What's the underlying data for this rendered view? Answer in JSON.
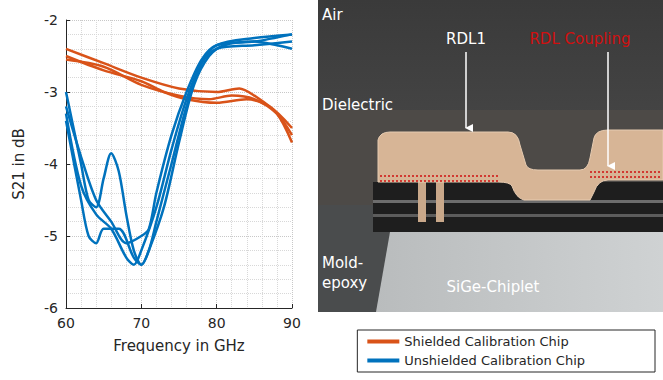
{
  "chart_data": {
    "type": "line",
    "x_label": "Frequency in GHz",
    "y_label": "S21 in dB",
    "xlim": [
      60,
      90
    ],
    "xticks": [
      60,
      70,
      80,
      90
    ],
    "ylim": [
      -6,
      -2
    ],
    "yticks": [
      -6,
      -5,
      -4,
      -3,
      -2
    ],
    "grid": true,
    "legend": "bottom-right",
    "series": [
      {
        "name": "Shielded Calibration Chip",
        "color": "#d95319",
        "x": [
          60,
          65,
          70,
          75,
          80,
          83,
          85,
          88,
          90
        ],
        "values": [
          -2.4,
          -2.6,
          -2.8,
          -2.95,
          -3.0,
          -2.95,
          -3.05,
          -3.3,
          -3.7
        ]
      },
      {
        "name": "Shielded Calibration Chip",
        "color": "#d95319",
        "x": [
          60,
          65,
          70,
          73,
          76,
          80,
          84,
          87,
          90
        ],
        "values": [
          -2.5,
          -2.7,
          -2.85,
          -3.0,
          -3.1,
          -3.15,
          -3.1,
          -3.2,
          -3.5
        ]
      },
      {
        "name": "Shielded Calibration Chip",
        "color": "#d95319",
        "x": [
          60,
          65,
          70,
          75,
          79,
          82,
          85,
          88,
          90
        ],
        "values": [
          -2.55,
          -2.65,
          -2.9,
          -3.05,
          -3.1,
          -3.05,
          -3.1,
          -3.3,
          -3.6
        ]
      },
      {
        "name": "Unshielded Calibration Chip",
        "color": "#0072bd",
        "x": [
          60,
          62,
          63,
          64,
          65,
          66,
          67,
          68,
          69,
          70,
          71,
          72,
          74,
          76,
          78,
          80,
          85,
          90
        ],
        "values": [
          -3.0,
          -4.0,
          -4.5,
          -4.6,
          -4.2,
          -3.85,
          -4.1,
          -4.7,
          -5.2,
          -5.4,
          -5.2,
          -4.8,
          -4.0,
          -3.2,
          -2.6,
          -2.35,
          -2.25,
          -2.2
        ]
      },
      {
        "name": "Unshielded Calibration Chip",
        "color": "#0072bd",
        "x": [
          60,
          62,
          63,
          64,
          65,
          67,
          69,
          70,
          71,
          73,
          75,
          77,
          79,
          81,
          85,
          88,
          90
        ],
        "values": [
          -3.4,
          -4.5,
          -5.0,
          -5.1,
          -4.9,
          -4.9,
          -5.3,
          -5.4,
          -5.2,
          -4.6,
          -3.7,
          -2.9,
          -2.5,
          -2.35,
          -2.3,
          -2.35,
          -2.4
        ]
      },
      {
        "name": "Unshielded Calibration Chip",
        "color": "#0072bd",
        "x": [
          60,
          62,
          64,
          66,
          68,
          70,
          71,
          72,
          74,
          76,
          78,
          80,
          85,
          90
        ],
        "values": [
          -3.2,
          -3.9,
          -4.5,
          -4.8,
          -5.1,
          -5.0,
          -4.9,
          -4.4,
          -3.6,
          -3.0,
          -2.55,
          -2.35,
          -2.3,
          -2.2
        ]
      },
      {
        "name": "Unshielded Calibration Chip",
        "color": "#0072bd",
        "x": [
          60,
          62,
          64,
          66,
          68,
          69,
          70,
          72,
          74,
          76,
          78,
          80,
          85,
          90
        ],
        "values": [
          -3.3,
          -4.3,
          -4.7,
          -4.9,
          -5.3,
          -5.4,
          -5.2,
          -4.6,
          -3.8,
          -3.1,
          -2.6,
          -2.4,
          -2.35,
          -2.3
        ]
      }
    ]
  },
  "image": {
    "labels": {
      "air": "Air",
      "rdl1": "RDL1",
      "rdl_coupling": "RDL Coupling",
      "dielectric": "Dielectric",
      "mold_epoxy": [
        "Mold-",
        "epoxy"
      ],
      "chiplet": "SiGe-Chiplet"
    }
  }
}
